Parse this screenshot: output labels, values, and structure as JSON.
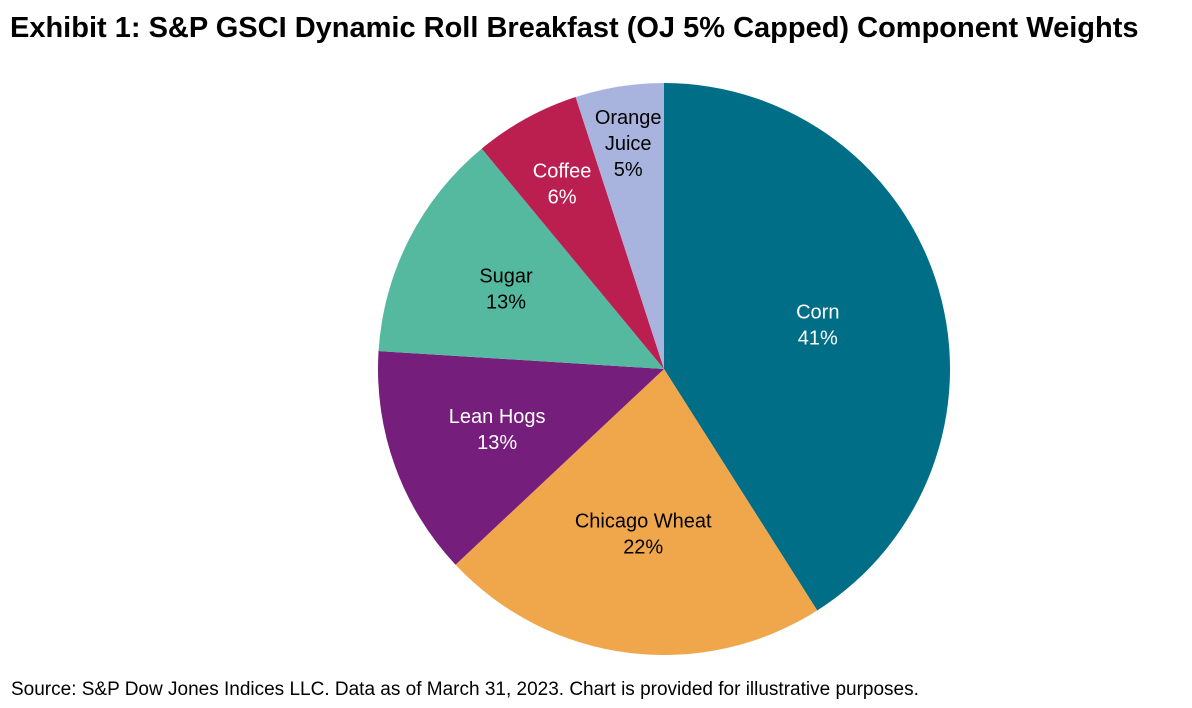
{
  "chart_data": {
    "type": "pie",
    "title": "Exhibit 1: S&P GSCI Dynamic Roll Breakfast (OJ 5% Capped) Component Weights",
    "source": "Source: S&P Dow Jones Indices LLC. Data as of March 31, 2023. Chart is provided for illustrative purposes.",
    "start_angle_deg": 0,
    "direction": "clockwise",
    "legend": "none",
    "slices": [
      {
        "label": "Corn",
        "display_value": "41%",
        "value": 41,
        "color": "#006E87",
        "label_color": "#FFFFFF"
      },
      {
        "label": "Chicago Wheat",
        "display_value": "22%",
        "value": 22,
        "color": "#F0A74B",
        "label_color": "#000000"
      },
      {
        "label": "Lean Hogs",
        "display_value": "13%",
        "value": 13,
        "color": "#751E7B",
        "label_color": "#FFFFFF"
      },
      {
        "label": "Sugar",
        "display_value": "13%",
        "value": 13,
        "color": "#55B9A0",
        "label_color": "#000000"
      },
      {
        "label": "Coffee",
        "display_value": "6%",
        "value": 6,
        "color": "#BB1F50",
        "label_color": "#FFFFFF"
      },
      {
        "label": "Orange Juice",
        "display_value": "5%",
        "value": 5,
        "color": "#A9B4DE",
        "label_color": "#000000"
      }
    ]
  }
}
